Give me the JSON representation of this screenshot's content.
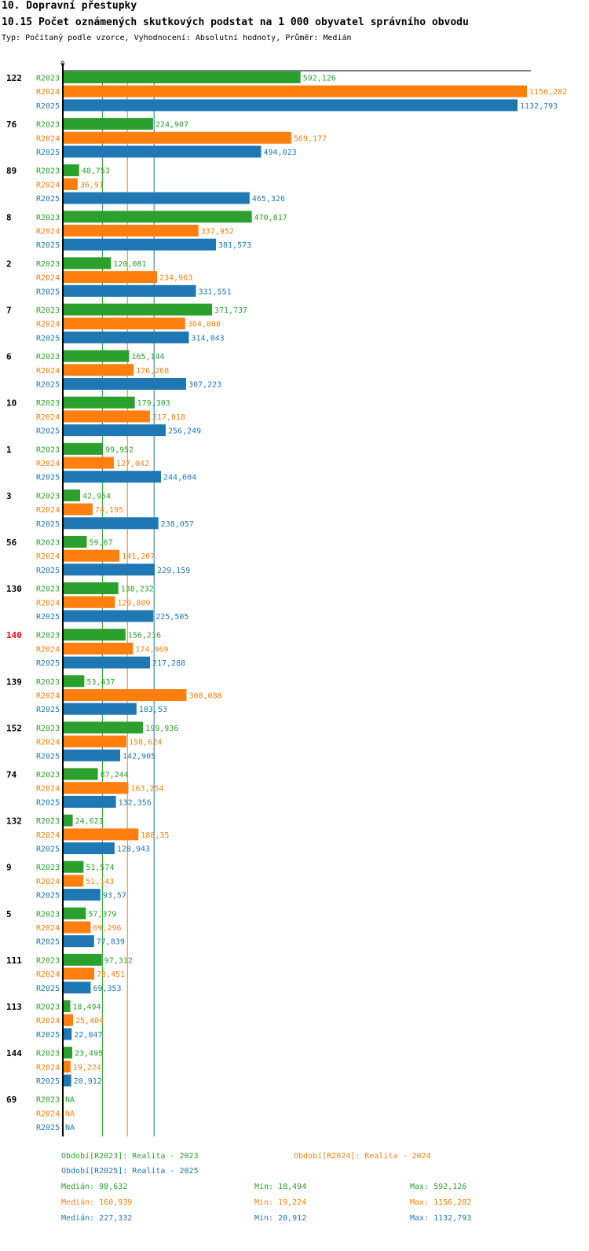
{
  "header": {
    "title": "10. Dopravní přestupky",
    "subtitle": "10.15 Počet oznámených skutkových podstat na 1 000 obyvatel správního obvodu",
    "meta": "Typ: Počítaný podle vzorce, Vyhodnocení: Absolutní hodnoty, Průměr: Medián"
  },
  "colors": {
    "R2023": "#2ca02c",
    "R2024": "#ff7f0e",
    "R2025": "#1f77b4",
    "highlight": "#ff0000"
  },
  "chart_data": {
    "type": "bar",
    "orientation": "horizontal",
    "axis_zero_label": "0",
    "xlim": [
      0,
      1156.282
    ],
    "series_names": [
      "R2023",
      "R2024",
      "R2025"
    ],
    "highlight_category": "140",
    "categories": [
      {
        "name": "122",
        "values": [
          592.126,
          1156.282,
          1132.793
        ],
        "labels": [
          "592,126",
          "1156,282",
          "1132,793"
        ]
      },
      {
        "name": "76",
        "values": [
          224.907,
          569.177,
          494.023
        ],
        "labels": [
          "224,907",
          "569,177",
          "494,023"
        ]
      },
      {
        "name": "89",
        "values": [
          40.753,
          36.91,
          465.326
        ],
        "labels": [
          "40,753",
          "36,91",
          "465,326"
        ]
      },
      {
        "name": "8",
        "values": [
          470.817,
          337.952,
          381.573
        ],
        "labels": [
          "470,817",
          "337,952",
          "381,573"
        ]
      },
      {
        "name": "2",
        "values": [
          120.081,
          234.963,
          331.551
        ],
        "labels": [
          "120,081",
          "234,963",
          "331,551"
        ]
      },
      {
        "name": "7",
        "values": [
          371.737,
          304.808,
          314.043
        ],
        "labels": [
          "371,737",
          "304,808",
          "314,043"
        ]
      },
      {
        "name": "6",
        "values": [
          165.144,
          176.268,
          307.223
        ],
        "labels": [
          "165,144",
          "176,268",
          "307,223"
        ]
      },
      {
        "name": "10",
        "values": [
          179.303,
          217.018,
          256.249
        ],
        "labels": [
          "179,303",
          "217,018",
          "256,249"
        ]
      },
      {
        "name": "1",
        "values": [
          99.952,
          127.042,
          244.604
        ],
        "labels": [
          "99,952",
          "127,042",
          "244,604"
        ]
      },
      {
        "name": "3",
        "values": [
          42.954,
          74.195,
          238.057
        ],
        "labels": [
          "42,954",
          "74,195",
          "238,057"
        ]
      },
      {
        "name": "56",
        "values": [
          59.67,
          141.207,
          229.159
        ],
        "labels": [
          "59,67",
          "141,207",
          "229,159"
        ]
      },
      {
        "name": "130",
        "values": [
          138.232,
          129.809,
          225.505
        ],
        "labels": [
          "138,232",
          "129,809",
          "225,505"
        ]
      },
      {
        "name": "140",
        "values": [
          156.216,
          174.969,
          217.288
        ],
        "labels": [
          "156,216",
          "174,969",
          "217,288"
        ]
      },
      {
        "name": "139",
        "values": [
          53.437,
          308.088,
          183.53
        ],
        "labels": [
          "53,437",
          "308,088",
          "183,53"
        ]
      },
      {
        "name": "152",
        "values": [
          199.936,
          158.624,
          142.905
        ],
        "labels": [
          "199,936",
          "158,624",
          "142,905"
        ]
      },
      {
        "name": "74",
        "values": [
          87.244,
          163.254,
          132.356
        ],
        "labels": [
          "87,244",
          "163,254",
          "132,356"
        ]
      },
      {
        "name": "132",
        "values": [
          24.621,
          188.35,
          128.943
        ],
        "labels": [
          "24,621",
          "188,35",
          "128,943"
        ]
      },
      {
        "name": "9",
        "values": [
          51.574,
          51.143,
          93.57
        ],
        "labels": [
          "51,574",
          "51,143",
          "93,57"
        ]
      },
      {
        "name": "5",
        "values": [
          57.379,
          69.296,
          77.839
        ],
        "labels": [
          "57,379",
          "69,296",
          "77,839"
        ]
      },
      {
        "name": "111",
        "values": [
          97.312,
          78.451,
          69.353
        ],
        "labels": [
          "97,312",
          "78,451",
          "69,353"
        ]
      },
      {
        "name": "113",
        "values": [
          18.494,
          25.404,
          22.047
        ],
        "labels": [
          "18,494",
          "25,404",
          "22,047"
        ]
      },
      {
        "name": "144",
        "values": [
          23.495,
          19.224,
          20.912
        ],
        "labels": [
          "23,495",
          "19,224",
          "20,912"
        ]
      },
      {
        "name": "69",
        "values": [
          null,
          null,
          null
        ],
        "labels": [
          "NA",
          "NA",
          "NA"
        ]
      }
    ],
    "medians": [
      98.632,
      160.939,
      227.332
    ]
  },
  "legend": {
    "period_2023": "Období[R2023]: Realita - 2023",
    "period_2024": "Období[R2024]: Realita - 2024",
    "period_2025": "Období[R2025]: Realita - 2025",
    "stats": [
      {
        "median": "Medián: 98,632",
        "min": "Min: 18,494",
        "max": "Max: 592,126"
      },
      {
        "median": "Medián: 160,939",
        "min": "Min: 19,224",
        "max": "Max: 1156,282"
      },
      {
        "median": "Medián: 227,332",
        "min": "Min: 20,912",
        "max": "Max: 1132,793"
      }
    ]
  }
}
